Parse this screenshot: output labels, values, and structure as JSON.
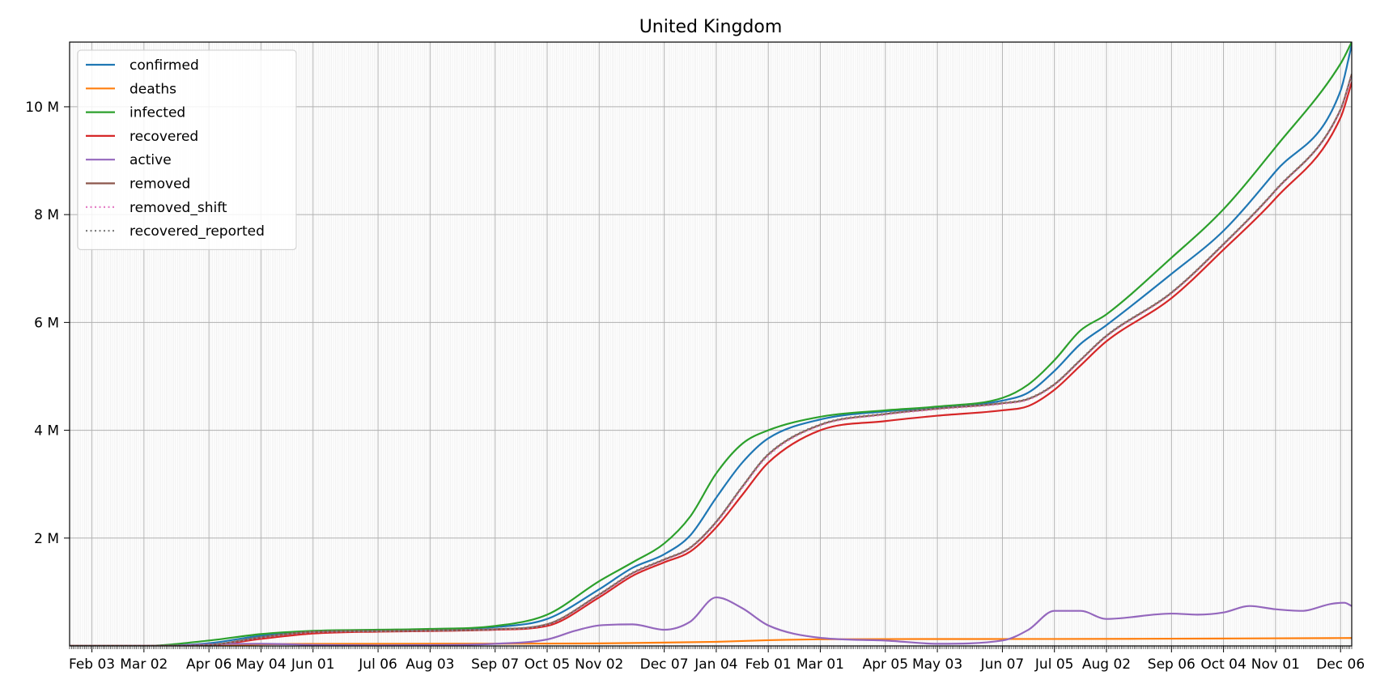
{
  "chart_data": {
    "type": "line",
    "title": "United Kingdom",
    "xlabel": "",
    "ylabel": "",
    "xlim": [
      "2020-01-22",
      "2021-12-12"
    ],
    "ylim": [
      0,
      11200000
    ],
    "grid": true,
    "legend_position": "top-left",
    "x_ticks": [
      {
        "date": "2020-02-03",
        "label": "Feb 03"
      },
      {
        "date": "2020-03-02",
        "label": "Mar 02"
      },
      {
        "date": "2020-04-06",
        "label": "Apr 06"
      },
      {
        "date": "2020-05-04",
        "label": "May 04"
      },
      {
        "date": "2020-06-01",
        "label": "Jun 01"
      },
      {
        "date": "2020-07-06",
        "label": "Jul 06"
      },
      {
        "date": "2020-08-03",
        "label": "Aug 03"
      },
      {
        "date": "2020-09-07",
        "label": "Sep 07"
      },
      {
        "date": "2020-10-05",
        "label": "Oct 05"
      },
      {
        "date": "2020-11-02",
        "label": "Nov 02"
      },
      {
        "date": "2020-12-07",
        "label": "Dec 07"
      },
      {
        "date": "2021-01-04",
        "label": "Jan 04"
      },
      {
        "date": "2021-02-01",
        "label": "Feb 01"
      },
      {
        "date": "2021-03-01",
        "label": "Mar 01"
      },
      {
        "date": "2021-04-05",
        "label": "Apr 05"
      },
      {
        "date": "2021-05-03",
        "label": "May 03"
      },
      {
        "date": "2021-06-07",
        "label": "Jun 07"
      },
      {
        "date": "2021-07-05",
        "label": "Jul 05"
      },
      {
        "date": "2021-08-02",
        "label": "Aug 02"
      },
      {
        "date": "2021-09-06",
        "label": "Sep 06"
      },
      {
        "date": "2021-10-04",
        "label": "Oct 04"
      },
      {
        "date": "2021-11-01",
        "label": "Nov 01"
      },
      {
        "date": "2021-12-06",
        "label": "Dec 06"
      }
    ],
    "y_ticks": [
      {
        "value": 2000000,
        "label": "2 M"
      },
      {
        "value": 4000000,
        "label": "4 M"
      },
      {
        "value": 6000000,
        "label": "6 M"
      },
      {
        "value": 8000000,
        "label": "8 M"
      },
      {
        "value": 10000000,
        "label": "10 M"
      }
    ],
    "series": [
      {
        "name": "confirmed",
        "color": "#1f77b4",
        "style": "solid",
        "points": [
          [
            "2020-01-22",
            0
          ],
          [
            "2020-03-01",
            40
          ],
          [
            "2020-04-06",
            50000
          ],
          [
            "2020-05-04",
            190000
          ],
          [
            "2020-06-01",
            275000
          ],
          [
            "2020-07-06",
            290000
          ],
          [
            "2020-08-03",
            305000
          ],
          [
            "2020-09-07",
            350000
          ],
          [
            "2020-10-05",
            500000
          ],
          [
            "2020-11-02",
            1050000
          ],
          [
            "2020-11-20",
            1450000
          ],
          [
            "2020-12-07",
            1700000
          ],
          [
            "2020-12-21",
            2050000
          ],
          [
            "2021-01-04",
            2750000
          ],
          [
            "2021-01-18",
            3400000
          ],
          [
            "2021-02-01",
            3850000
          ],
          [
            "2021-03-01",
            4200000
          ],
          [
            "2021-04-05",
            4350000
          ],
          [
            "2021-05-03",
            4420000
          ],
          [
            "2021-06-07",
            4550000
          ],
          [
            "2021-06-21",
            4700000
          ],
          [
            "2021-07-05",
            5100000
          ],
          [
            "2021-07-19",
            5600000
          ],
          [
            "2021-08-02",
            5950000
          ],
          [
            "2021-09-06",
            6900000
          ],
          [
            "2021-10-04",
            7700000
          ],
          [
            "2021-11-01",
            8800000
          ],
          [
            "2021-12-06",
            10300000
          ],
          [
            "2021-12-12",
            11150000
          ]
        ]
      },
      {
        "name": "deaths",
        "color": "#ff7f0e",
        "style": "solid",
        "points": [
          [
            "2020-01-22",
            0
          ],
          [
            "2020-03-15",
            100
          ],
          [
            "2020-04-06",
            6000
          ],
          [
            "2020-05-04",
            29000
          ],
          [
            "2020-06-01",
            38000
          ],
          [
            "2020-09-07",
            41500
          ],
          [
            "2020-11-02",
            47000
          ],
          [
            "2020-12-07",
            62000
          ],
          [
            "2021-01-04",
            76000
          ],
          [
            "2021-02-01",
            106000
          ],
          [
            "2021-03-01",
            123000
          ],
          [
            "2021-04-05",
            127000
          ],
          [
            "2021-07-05",
            128500
          ],
          [
            "2021-10-04",
            137000
          ],
          [
            "2021-12-12",
            146500
          ]
        ]
      },
      {
        "name": "infected",
        "color": "#2ca02c",
        "style": "solid",
        "points": [
          [
            "2020-01-22",
            0
          ],
          [
            "2020-03-02",
            1000
          ],
          [
            "2020-04-06",
            100000
          ],
          [
            "2020-05-04",
            220000
          ],
          [
            "2020-06-01",
            280000
          ],
          [
            "2020-07-06",
            300000
          ],
          [
            "2020-08-03",
            315000
          ],
          [
            "2020-09-07",
            370000
          ],
          [
            "2020-10-05",
            580000
          ],
          [
            "2020-11-02",
            1200000
          ],
          [
            "2020-11-20",
            1550000
          ],
          [
            "2020-12-07",
            1900000
          ],
          [
            "2020-12-21",
            2400000
          ],
          [
            "2021-01-04",
            3200000
          ],
          [
            "2021-01-18",
            3750000
          ],
          [
            "2021-02-01",
            4000000
          ],
          [
            "2021-03-01",
            4250000
          ],
          [
            "2021-04-05",
            4370000
          ],
          [
            "2021-05-03",
            4440000
          ],
          [
            "2021-06-07",
            4600000
          ],
          [
            "2021-06-21",
            4850000
          ],
          [
            "2021-07-05",
            5300000
          ],
          [
            "2021-07-19",
            5850000
          ],
          [
            "2021-08-02",
            6150000
          ],
          [
            "2021-09-06",
            7200000
          ],
          [
            "2021-10-04",
            8100000
          ],
          [
            "2021-11-01",
            9250000
          ],
          [
            "2021-12-06",
            10800000
          ],
          [
            "2021-12-12",
            11200000
          ]
        ]
      },
      {
        "name": "recovered",
        "color": "#d62728",
        "style": "solid",
        "points": [
          [
            "2020-01-22",
            0
          ],
          [
            "2020-03-15",
            100
          ],
          [
            "2020-04-06",
            10000
          ],
          [
            "2020-05-04",
            130000
          ],
          [
            "2020-06-01",
            230000
          ],
          [
            "2020-07-06",
            265000
          ],
          [
            "2020-08-03",
            275000
          ],
          [
            "2020-09-07",
            300000
          ],
          [
            "2020-10-05",
            370000
          ],
          [
            "2020-11-02",
            900000
          ],
          [
            "2020-11-20",
            1300000
          ],
          [
            "2020-12-07",
            1550000
          ],
          [
            "2020-12-21",
            1750000
          ],
          [
            "2021-01-04",
            2200000
          ],
          [
            "2021-01-18",
            2800000
          ],
          [
            "2021-02-01",
            3400000
          ],
          [
            "2021-03-01",
            4000000
          ],
          [
            "2021-04-05",
            4170000
          ],
          [
            "2021-05-03",
            4270000
          ],
          [
            "2021-06-07",
            4370000
          ],
          [
            "2021-06-21",
            4450000
          ],
          [
            "2021-07-05",
            4750000
          ],
          [
            "2021-07-19",
            5200000
          ],
          [
            "2021-08-02",
            5650000
          ],
          [
            "2021-09-06",
            6450000
          ],
          [
            "2021-10-04",
            7350000
          ],
          [
            "2021-11-01",
            8300000
          ],
          [
            "2021-12-06",
            9800000
          ],
          [
            "2021-12-12",
            10450000
          ]
        ]
      },
      {
        "name": "active",
        "color": "#9467bd",
        "style": "solid",
        "points": [
          [
            "2020-01-22",
            0
          ],
          [
            "2020-03-15",
            3000
          ],
          [
            "2020-04-06",
            30000
          ],
          [
            "2020-05-04",
            40000
          ],
          [
            "2020-06-01",
            20000
          ],
          [
            "2020-07-06",
            10000
          ],
          [
            "2020-08-03",
            15000
          ],
          [
            "2020-09-07",
            40000
          ],
          [
            "2020-10-05",
            120000
          ],
          [
            "2020-10-20",
            280000
          ],
          [
            "2020-11-02",
            380000
          ],
          [
            "2020-11-20",
            400000
          ],
          [
            "2020-12-07",
            300000
          ],
          [
            "2020-12-21",
            450000
          ],
          [
            "2021-01-04",
            900000
          ],
          [
            "2021-01-18",
            700000
          ],
          [
            "2021-02-01",
            380000
          ],
          [
            "2021-03-01",
            150000
          ],
          [
            "2021-04-05",
            100000
          ],
          [
            "2021-05-03",
            40000
          ],
          [
            "2021-06-07",
            100000
          ],
          [
            "2021-06-21",
            300000
          ],
          [
            "2021-07-05",
            650000
          ],
          [
            "2021-07-19",
            650000
          ],
          [
            "2021-08-02",
            500000
          ],
          [
            "2021-09-06",
            600000
          ],
          [
            "2021-09-20",
            580000
          ],
          [
            "2021-10-04",
            620000
          ],
          [
            "2021-10-18",
            740000
          ],
          [
            "2021-11-01",
            680000
          ],
          [
            "2021-11-15",
            650000
          ],
          [
            "2021-12-01",
            780000
          ],
          [
            "2021-12-08",
            800000
          ],
          [
            "2021-12-12",
            740000
          ]
        ]
      },
      {
        "name": "removed",
        "color": "#8c564b",
        "style": "solid",
        "points": [
          [
            "2020-01-22",
            0
          ],
          [
            "2020-03-15",
            200
          ],
          [
            "2020-04-06",
            16000
          ],
          [
            "2020-05-04",
            160000
          ],
          [
            "2020-06-01",
            260000
          ],
          [
            "2020-07-06",
            275000
          ],
          [
            "2020-08-03",
            285000
          ],
          [
            "2020-09-07",
            310000
          ],
          [
            "2020-10-05",
            400000
          ],
          [
            "2020-11-02",
            950000
          ],
          [
            "2020-11-20",
            1350000
          ],
          [
            "2020-12-07",
            1600000
          ],
          [
            "2020-12-21",
            1820000
          ],
          [
            "2021-01-04",
            2300000
          ],
          [
            "2021-01-18",
            2950000
          ],
          [
            "2021-02-01",
            3550000
          ],
          [
            "2021-03-01",
            4100000
          ],
          [
            "2021-04-05",
            4300000
          ],
          [
            "2021-05-03",
            4400000
          ],
          [
            "2021-06-07",
            4500000
          ],
          [
            "2021-06-21",
            4580000
          ],
          [
            "2021-07-05",
            4850000
          ],
          [
            "2021-07-19",
            5300000
          ],
          [
            "2021-08-02",
            5750000
          ],
          [
            "2021-09-06",
            6550000
          ],
          [
            "2021-10-04",
            7450000
          ],
          [
            "2021-11-01",
            8450000
          ],
          [
            "2021-12-06",
            9950000
          ],
          [
            "2021-12-12",
            10600000
          ]
        ]
      },
      {
        "name": "removed_shift",
        "color": "#e377c2",
        "style": "dotted",
        "points": [
          [
            "2020-01-22",
            0
          ],
          [
            "2020-03-15",
            200
          ],
          [
            "2020-04-06",
            15000
          ],
          [
            "2020-05-04",
            155000
          ],
          [
            "2020-06-01",
            255000
          ],
          [
            "2020-07-06",
            272000
          ],
          [
            "2020-08-03",
            282000
          ],
          [
            "2020-09-07",
            308000
          ],
          [
            "2020-10-05",
            395000
          ],
          [
            "2020-11-02",
            940000
          ],
          [
            "2020-11-20",
            1340000
          ],
          [
            "2020-12-07",
            1590000
          ],
          [
            "2020-12-21",
            1810000
          ],
          [
            "2021-01-04",
            2280000
          ],
          [
            "2021-01-18",
            2930000
          ],
          [
            "2021-02-01",
            3530000
          ],
          [
            "2021-03-01",
            4090000
          ],
          [
            "2021-04-05",
            4290000
          ],
          [
            "2021-05-03",
            4390000
          ],
          [
            "2021-06-07",
            4490000
          ],
          [
            "2021-06-21",
            4570000
          ],
          [
            "2021-07-05",
            4840000
          ],
          [
            "2021-07-19",
            5290000
          ],
          [
            "2021-08-02",
            5740000
          ],
          [
            "2021-09-06",
            6540000
          ],
          [
            "2021-10-04",
            7440000
          ],
          [
            "2021-11-01",
            8440000
          ],
          [
            "2021-12-06",
            9940000
          ],
          [
            "2021-12-12",
            10580000
          ]
        ]
      },
      {
        "name": "recovered_reported",
        "color": "#7f7f7f",
        "style": "dotted",
        "points": [
          [
            "2020-01-22",
            0
          ],
          [
            "2020-03-15",
            200
          ],
          [
            "2020-04-06",
            17000
          ],
          [
            "2020-05-04",
            162000
          ],
          [
            "2020-06-01",
            262000
          ],
          [
            "2020-07-06",
            277000
          ],
          [
            "2020-08-03",
            287000
          ],
          [
            "2020-09-07",
            313000
          ],
          [
            "2020-10-05",
            405000
          ],
          [
            "2020-11-02",
            960000
          ],
          [
            "2020-11-20",
            1360000
          ],
          [
            "2020-12-07",
            1610000
          ],
          [
            "2020-12-21",
            1830000
          ],
          [
            "2021-01-04",
            2310000
          ],
          [
            "2021-01-18",
            2960000
          ],
          [
            "2021-02-01",
            3560000
          ],
          [
            "2021-03-01",
            4110000
          ],
          [
            "2021-04-05",
            4310000
          ],
          [
            "2021-05-03",
            4410000
          ],
          [
            "2021-06-07",
            4510000
          ],
          [
            "2021-06-21",
            4590000
          ],
          [
            "2021-07-05",
            4860000
          ],
          [
            "2021-07-19",
            5310000
          ],
          [
            "2021-08-02",
            5760000
          ],
          [
            "2021-09-06",
            6560000
          ],
          [
            "2021-10-04",
            7460000
          ],
          [
            "2021-11-01",
            8460000
          ],
          [
            "2021-12-06",
            9960000
          ],
          [
            "2021-12-12",
            10610000
          ]
        ]
      }
    ]
  }
}
